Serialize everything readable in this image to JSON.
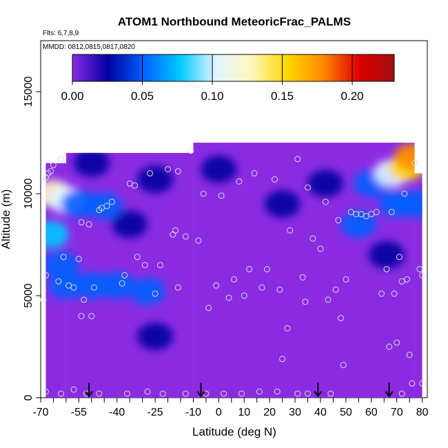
{
  "chart_data": {
    "type": "heatmap",
    "title": "ATOM1 Northbound MeteoricFrac_PALMS",
    "subtitle": "Flts: 6,7,8,9",
    "annotation": "MMDD: 0812,0815,0817,0820",
    "xlabel": "Latitude (deg N)",
    "ylabel": "Altitude (m)",
    "xlim": [
      -70,
      82
    ],
    "ylim": [
      0,
      17500
    ],
    "x_ticks": [
      -70,
      -55,
      -40,
      -25,
      -10,
      0,
      10,
      20,
      30,
      40,
      50,
      60,
      70,
      80
    ],
    "x_tick_labels": [
      "-70",
      "-55",
      "-40",
      "-25",
      "-10",
      "0",
      "10",
      "20",
      "30",
      "40",
      "50",
      "60",
      "70",
      "80"
    ],
    "x_minor_ticks": [
      -65,
      -60,
      -50,
      -45,
      -35,
      -30,
      -20,
      -15,
      -5,
      5,
      15,
      25,
      35,
      45,
      55,
      65,
      75
    ],
    "y_ticks": [
      0,
      5000,
      10000,
      15000
    ],
    "y_tick_labels": [
      "0",
      "5000",
      "10000",
      "15000"
    ],
    "colorbar": {
      "range": [
        0,
        0.23
      ],
      "ticks": [
        0.0,
        0.05,
        0.1,
        0.15,
        0.2
      ],
      "tick_labels": [
        "0.00",
        "0.05",
        "0.10",
        "0.15",
        "0.20"
      ],
      "colors": [
        "#8a2be2",
        "#0000a0",
        "#0060ff",
        "#00c8ff",
        "#e0f4ff",
        "#fff8c0",
        "#ffd700",
        "#ff8c00",
        "#e00000",
        "#a01010"
      ]
    },
    "coverage": [
      {
        "lat_range": [
          -68,
          -60
        ],
        "alt_range": [
          0,
          11500
        ]
      },
      {
        "lat_range": [
          -60,
          -10
        ],
        "alt_range": [
          0,
          12000
        ]
      },
      {
        "lat_range": [
          -10,
          77
        ],
        "alt_range": [
          0,
          12500
        ]
      },
      {
        "lat_range": [
          77,
          80
        ],
        "alt_range": [
          0,
          11000
        ]
      }
    ],
    "fields": [
      {
        "lat": -65,
        "alt": 10000,
        "value": 0.13
      },
      {
        "lat": -60,
        "alt": 9700,
        "value": 0.09
      },
      {
        "lat": -55,
        "alt": 9500,
        "value": 0.06
      },
      {
        "lat": -45,
        "alt": 9400,
        "value": 0.05
      },
      {
        "lat": -66,
        "alt": 8000,
        "value": 0.07
      },
      {
        "lat": -62,
        "alt": 6500,
        "value": 0.04
      },
      {
        "lat": -60,
        "alt": 5500,
        "value": 0.06
      },
      {
        "lat": -50,
        "alt": 5500,
        "value": 0.045
      },
      {
        "lat": -40,
        "alt": 5500,
        "value": 0.04
      },
      {
        "lat": -28,
        "alt": 5200,
        "value": 0.055
      },
      {
        "lat": -25,
        "alt": 3000,
        "value": 0.03
      },
      {
        "lat": -35,
        "alt": 8500,
        "value": 0.03
      },
      {
        "lat": -25,
        "alt": 10700,
        "value": 0.03
      },
      {
        "lat": -50,
        "alt": 11500,
        "value": 0.035
      },
      {
        "lat": 0,
        "alt": 11200,
        "value": 0.02
      },
      {
        "lat": 25,
        "alt": 9500,
        "value": 0.025
      },
      {
        "lat": 42,
        "alt": 10500,
        "value": 0.035
      },
      {
        "lat": 55,
        "alt": 8500,
        "value": 0.045
      },
      {
        "lat": 66,
        "alt": 7000,
        "value": 0.035
      },
      {
        "lat": 60,
        "alt": 10500,
        "value": 0.06
      },
      {
        "lat": 68,
        "alt": 11000,
        "value": 0.1
      },
      {
        "lat": 74,
        "alt": 11300,
        "value": 0.15
      },
      {
        "lat": 76,
        "alt": 11800,
        "value": 0.17
      },
      {
        "lat": 70,
        "alt": 9500,
        "value": 0.06
      },
      {
        "lat": 78,
        "alt": 9500,
        "value": 0.05
      }
    ],
    "points": [
      {
        "lat": -68,
        "alt": 10800
      },
      {
        "lat": -67,
        "alt": 11000
      },
      {
        "lat": -66,
        "alt": 11100
      },
      {
        "lat": -65,
        "alt": 11400
      },
      {
        "lat": -62,
        "alt": 11700
      },
      {
        "lat": -68,
        "alt": 6000
      },
      {
        "lat": -69,
        "alt": 4800
      },
      {
        "lat": -63,
        "alt": 5700
      },
      {
        "lat": -61,
        "alt": 6900
      },
      {
        "lat": -59,
        "alt": 5500
      },
      {
        "lat": -57,
        "alt": 5400
      },
      {
        "lat": -55,
        "alt": 6800
      },
      {
        "lat": -54,
        "alt": 8600
      },
      {
        "lat": -51,
        "alt": 8500
      },
      {
        "lat": -53,
        "alt": 4800
      },
      {
        "lat": -54,
        "alt": 4000
      },
      {
        "lat": -50,
        "alt": 4000
      },
      {
        "lat": -49,
        "alt": 5400
      },
      {
        "lat": -47,
        "alt": 9200
      },
      {
        "lat": -46,
        "alt": 9300
      },
      {
        "lat": -44,
        "alt": 9400
      },
      {
        "lat": -42,
        "alt": 9600
      },
      {
        "lat": -38,
        "alt": 5600
      },
      {
        "lat": -37,
        "alt": 6000
      },
      {
        "lat": -35,
        "alt": 10500
      },
      {
        "lat": -33,
        "alt": 10400
      },
      {
        "lat": -32,
        "alt": 6900
      },
      {
        "lat": -29,
        "alt": 6500
      },
      {
        "lat": -27,
        "alt": 11000
      },
      {
        "lat": -25,
        "alt": 5100
      },
      {
        "lat": -23,
        "alt": 6500
      },
      {
        "lat": -20,
        "alt": 11200
      },
      {
        "lat": -18,
        "alt": 8000
      },
      {
        "lat": -17,
        "alt": 8200
      },
      {
        "lat": -16,
        "alt": 5400
      },
      {
        "lat": -16,
        "alt": 11100
      },
      {
        "lat": -13,
        "alt": 7900
      },
      {
        "lat": -11,
        "alt": 12100
      },
      {
        "lat": -8,
        "alt": 7700
      },
      {
        "lat": -6,
        "alt": 10000
      },
      {
        "lat": -4,
        "alt": 4400
      },
      {
        "lat": -1,
        "alt": 5500
      },
      {
        "lat": 1,
        "alt": 9900
      },
      {
        "lat": 4,
        "alt": 4900
      },
      {
        "lat": 6,
        "alt": 5800
      },
      {
        "lat": 8,
        "alt": 10600
      },
      {
        "lat": 10,
        "alt": 5000
      },
      {
        "lat": 12,
        "alt": 6300
      },
      {
        "lat": 14,
        "alt": 11000
      },
      {
        "lat": 17,
        "alt": 5400
      },
      {
        "lat": 19,
        "alt": 6300
      },
      {
        "lat": 22,
        "alt": 10700
      },
      {
        "lat": 24,
        "alt": 5300
      },
      {
        "lat": 25,
        "alt": 1900
      },
      {
        "lat": 27,
        "alt": 3400
      },
      {
        "lat": 28,
        "alt": 8200
      },
      {
        "lat": 31,
        "alt": 11700
      },
      {
        "lat": 33,
        "alt": 5900
      },
      {
        "lat": 34,
        "alt": 4700
      },
      {
        "lat": 35,
        "alt": 10300
      },
      {
        "lat": 37,
        "alt": 7800
      },
      {
        "lat": 40,
        "alt": 7300
      },
      {
        "lat": 42,
        "alt": 9600
      },
      {
        "lat": 43,
        "alt": 4800
      },
      {
        "lat": 46,
        "alt": 5300
      },
      {
        "lat": 47,
        "alt": 8700
      },
      {
        "lat": 48,
        "alt": 3900
      },
      {
        "lat": 49,
        "alt": 1600
      },
      {
        "lat": 50,
        "alt": 5800
      },
      {
        "lat": 52,
        "alt": 9100
      },
      {
        "lat": 54,
        "alt": 9000
      },
      {
        "lat": 56,
        "alt": 9000
      },
      {
        "lat": 58,
        "alt": 8900
      },
      {
        "lat": 60,
        "alt": 9000
      },
      {
        "lat": 62,
        "alt": 9100
      },
      {
        "lat": 64,
        "alt": 5100
      },
      {
        "lat": 66,
        "alt": 6300
      },
      {
        "lat": 67,
        "alt": 2500
      },
      {
        "lat": 68,
        "alt": 9100
      },
      {
        "lat": 69,
        "alt": 5100
      },
      {
        "lat": 70,
        "alt": 2700
      },
      {
        "lat": 71,
        "alt": 6900
      },
      {
        "lat": 72,
        "alt": 5700
      },
      {
        "lat": 73,
        "alt": 10000
      },
      {
        "lat": 74,
        "alt": 5800
      },
      {
        "lat": 75,
        "alt": 2100
      },
      {
        "lat": 76,
        "alt": 700
      },
      {
        "lat": 77,
        "alt": 11500
      },
      {
        "lat": 79,
        "alt": 6300
      },
      {
        "lat": 80,
        "alt": 6000
      },
      {
        "lat": 80,
        "alt": 700
      },
      {
        "lat": -68,
        "alt": 300
      },
      {
        "lat": -62,
        "alt": 200
      },
      {
        "lat": -57,
        "alt": 400
      },
      {
        "lat": -52,
        "alt": 200
      },
      {
        "lat": -47,
        "alt": 200
      },
      {
        "lat": -36,
        "alt": 200
      },
      {
        "lat": -28,
        "alt": 300
      },
      {
        "lat": -22,
        "alt": 200
      },
      {
        "lat": -13,
        "alt": 200
      },
      {
        "lat": -5,
        "alt": 200
      },
      {
        "lat": 2,
        "alt": 200
      },
      {
        "lat": 9,
        "alt": 200
      },
      {
        "lat": 16,
        "alt": 300
      },
      {
        "lat": 23,
        "alt": 300
      },
      {
        "lat": 31,
        "alt": 200
      },
      {
        "lat": 35,
        "alt": 200
      },
      {
        "lat": 44,
        "alt": 200
      },
      {
        "lat": 72,
        "alt": 200
      }
    ],
    "arrows_lat": [
      -51,
      -7,
      39,
      67
    ]
  }
}
